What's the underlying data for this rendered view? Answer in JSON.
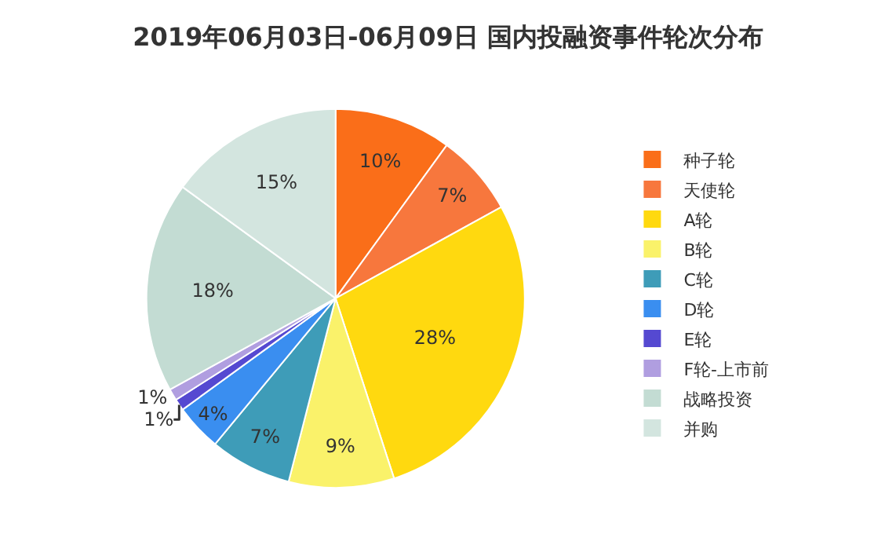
{
  "chart_data": {
    "type": "pie",
    "title": "2019年06月03日-06月09日 国内投融资事件轮次分布",
    "categories": [
      "种子轮",
      "天使轮",
      "A轮",
      "B轮",
      "C轮",
      "D轮",
      "E轮",
      "F轮-上市前",
      "战略投资",
      "并购"
    ],
    "values": [
      10,
      7,
      28,
      9,
      7,
      4,
      1,
      1,
      18,
      15
    ],
    "value_labels": [
      "10%",
      "7%",
      "28%",
      "9%",
      "7%",
      "4%",
      "1%",
      "1%",
      "18%",
      "15%"
    ],
    "colors": [
      "#fa6e19",
      "#f7773d",
      "#ffd90f",
      "#faf26a",
      "#3e9cb8",
      "#3a8ef0",
      "#5549d1",
      "#b09ee0",
      "#c3dcd3",
      "#d3e5df"
    ],
    "legend": "right"
  }
}
